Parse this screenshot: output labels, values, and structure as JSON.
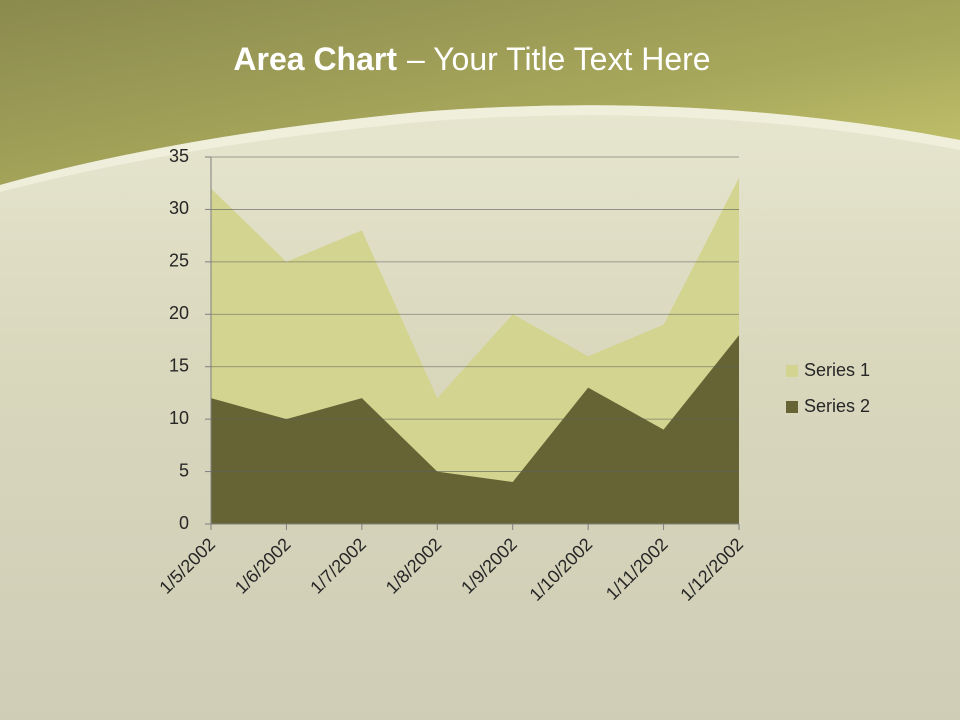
{
  "chart_data": {
    "type": "area",
    "title_bold": "Area Chart",
    "title_rest": "– Your Title Text Here",
    "categories": [
      "1/5/2002",
      "1/6/2002",
      "1/7/2002",
      "1/8/2002",
      "1/9/2002",
      "1/10/2002",
      "1/11/2002",
      "1/12/2002"
    ],
    "series": [
      {
        "name": "Series 1",
        "color": "#d3d490",
        "values": [
          32,
          25,
          28,
          12,
          20,
          16,
          19,
          33
        ]
      },
      {
        "name": "Series 2",
        "color": "#666435",
        "values": [
          12,
          10,
          12,
          5,
          4,
          13,
          9,
          18
        ]
      }
    ],
    "ylim": [
      0,
      35
    ],
    "yticks": [
      0,
      5,
      10,
      15,
      20,
      25,
      30,
      35
    ],
    "grid": true,
    "legend": "right"
  }
}
